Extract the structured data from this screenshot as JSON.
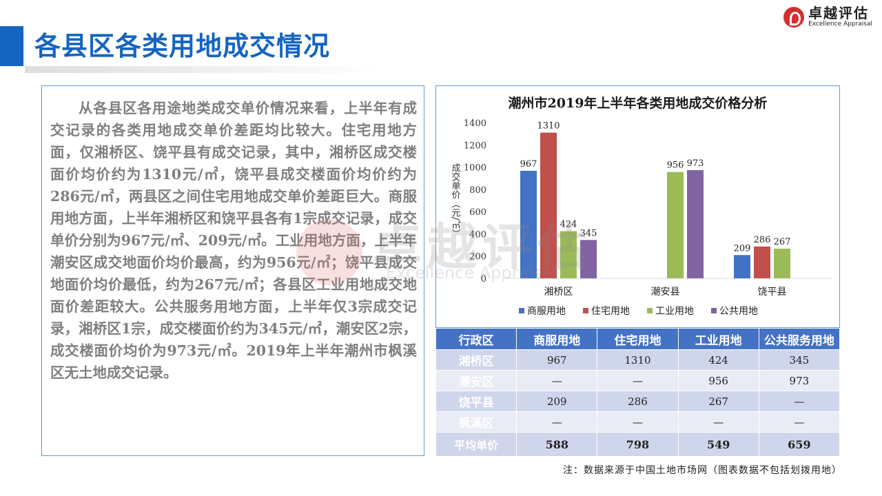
{
  "header": {
    "title": "各县区各类用地成交情况",
    "logo_cn": "卓越评估",
    "logo_en": "Excellence Appraisal"
  },
  "body_text": "从各县区各用途地类成交单价情况来看，上半年有成交记录的各类用地成交单价差距均比较大。住宅用地方面，仅湘桥区、饶平县有成交记录，其中，湘桥区成交楼面价均价约为1310元/㎡，饶平县成交楼面价均价约为286元/㎡，两县区之间住宅用地成交单价差距巨大。商服用地方面，上半年湘桥区和饶平县各有1宗成交记录，成交单价分别为967元/㎡、209元/㎡。工业用地方面，上半年潮安区成交地面价均价最高，约为956元/㎡；饶平县成交地面价均价最低，约为267元/㎡；各县区工业用地成交地面价差距较大。公共服务用地方面，上半年仅3宗成交记录，湘桥区1宗，成交楼面价约为345元/㎡，潮安区2宗，成交楼面价均价为973元/㎡。2019年上半年潮州市枫溪区无土地成交记录。",
  "watermark": {
    "cn": "卓越评估",
    "en": "Excellence Appraisal"
  },
  "chart_data": {
    "type": "bar",
    "title": "潮州市2019年上半年各类用地成交价格分析",
    "ylabel": "成交单价（元/㎡）",
    "xlabel": "",
    "ylim": [
      0,
      1400
    ],
    "yticks": [
      0,
      200,
      400,
      600,
      800,
      1000,
      1200,
      1400
    ],
    "categories": [
      "湘桥区",
      "潮安县",
      "饶平县"
    ],
    "series": [
      {
        "name": "商服用地",
        "color": "#4472c4",
        "values": [
          967,
          null,
          209
        ]
      },
      {
        "name": "住宅用地",
        "color": "#c0504d",
        "values": [
          1310,
          null,
          286
        ]
      },
      {
        "name": "工业用地",
        "color": "#9bbb59",
        "values": [
          424,
          956,
          267
        ]
      },
      {
        "name": "公共用地",
        "color": "#8064a2",
        "values": [
          345,
          973,
          null
        ]
      }
    ],
    "legend_position": "bottom",
    "grid": false
  },
  "table": {
    "headers": [
      "行政区",
      "商服用地",
      "住宅用地",
      "工业用地",
      "公共服务用地"
    ],
    "rows": [
      [
        "湘桥区",
        "967",
        "1310",
        "424",
        "345"
      ],
      [
        "潮安区",
        "—",
        "—",
        "956",
        "973"
      ],
      [
        "饶平县",
        "209",
        "286",
        "267",
        "—"
      ],
      [
        "枫溪区",
        "—",
        "—",
        "—",
        "—"
      ]
    ],
    "average_row": [
      "平均单价",
      "588",
      "798",
      "549",
      "659"
    ]
  },
  "source_note": "注：数据来源于中国土地市场网（图表数据不包括划拨用地）"
}
